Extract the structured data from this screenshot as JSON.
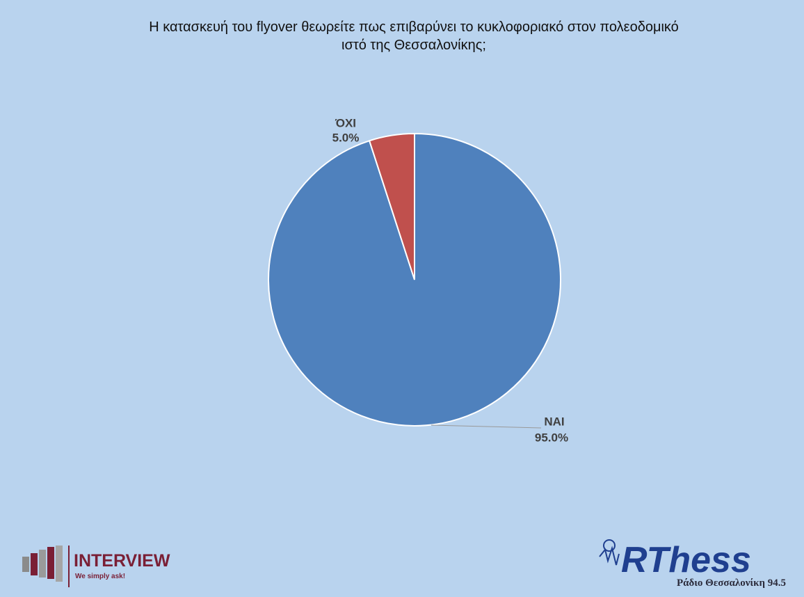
{
  "chart_data": {
    "type": "pie",
    "title": "Η κατασκευή του flyover θεωρείτε πως επιβαρύνει το κυκλοφοριακό στον πολεοδομικό ιστό της Θεσσαλονίκης;",
    "categories": [
      "ΝΑΙ",
      "ΌΧΙ"
    ],
    "values": [
      95,
      5
    ],
    "value_labels": [
      "95.0%",
      "5.0%"
    ],
    "colors": [
      "#4f81bd",
      "#c0504d"
    ]
  },
  "logos": {
    "interview": "INTERVIEW",
    "interview_slogan": "We simply ask!",
    "radio": "RThess",
    "radio_subtitle": "Ράδιο Θεσσαλονίκη 94.5"
  }
}
